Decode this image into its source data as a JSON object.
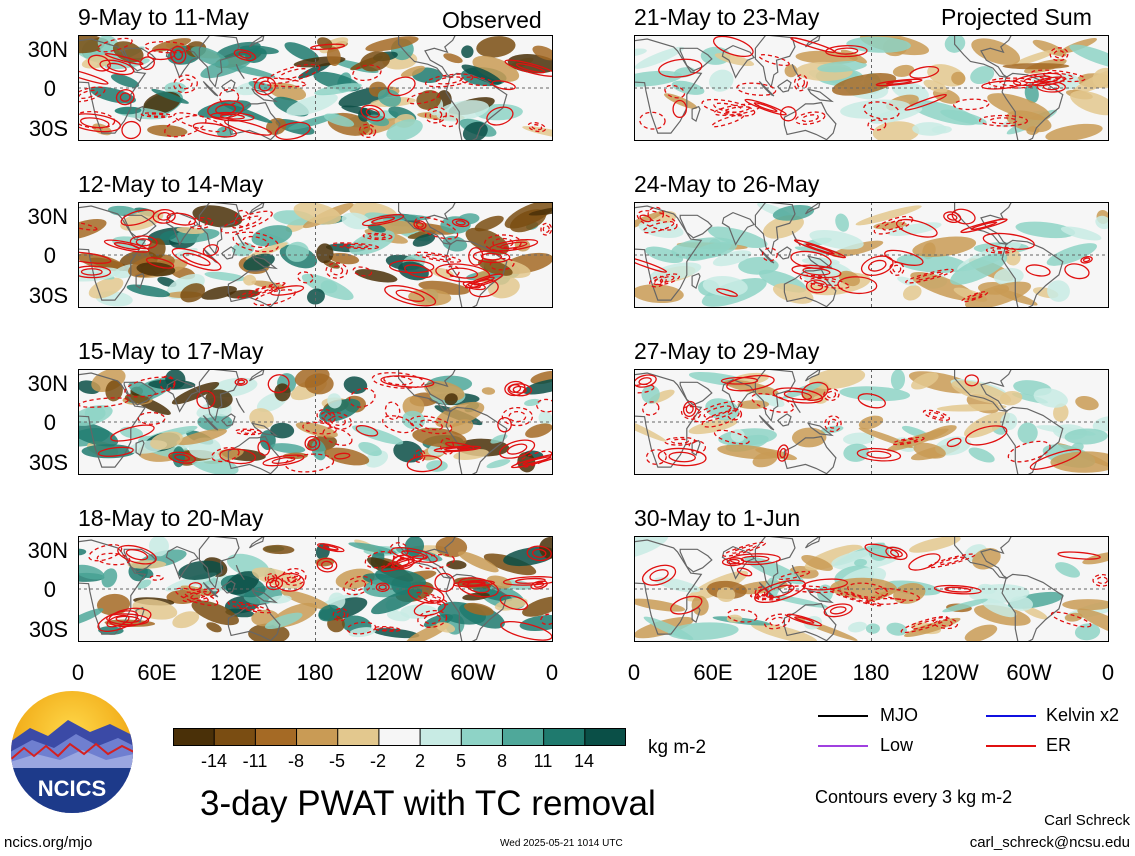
{
  "header": {
    "observed_label": "Observed",
    "projected_label": "Projected Sum"
  },
  "panels": [
    {
      "title": "9-May to 11-May",
      "seed": 11
    },
    {
      "title": "12-May to 14-May",
      "seed": 23
    },
    {
      "title": "15-May to 17-May",
      "seed": 37
    },
    {
      "title": "18-May to 20-May",
      "seed": 41
    },
    {
      "title": "21-May to 23-May",
      "seed": 53
    },
    {
      "title": "24-May to 26-May",
      "seed": 67
    },
    {
      "title": "27-May to 29-May",
      "seed": 71
    },
    {
      "title": "30-May to 1-Jun",
      "seed": 83
    }
  ],
  "y_ticks": [
    "30N",
    "0",
    "30S"
  ],
  "x_ticks": [
    "0",
    "60E",
    "120E",
    "180",
    "120W",
    "60W",
    "0"
  ],
  "colorbar": {
    "ticks": [
      "-14",
      "-11",
      "-8",
      "-5",
      "-2",
      "2",
      "5",
      "8",
      "11",
      "14"
    ],
    "colors": [
      "#4a3008",
      "#7a4d12",
      "#a56a25",
      "#c99b55",
      "#e3c88e",
      "#f6f6f6",
      "#c8ebe4",
      "#8ed3c6",
      "#4fa89a",
      "#1f7a6e",
      "#0a4f47"
    ],
    "units": "kg m-2"
  },
  "legend": {
    "items": [
      {
        "label": "MJO",
        "color": "#000000"
      },
      {
        "label": "Kelvin x2",
        "color": "#1010e0"
      },
      {
        "label": "Low",
        "color": "#a040e0"
      },
      {
        "label": "ER",
        "color": "#e01010"
      }
    ],
    "contours_note": "Contours every 3 kg m-2"
  },
  "logo": {
    "text": "NCICS"
  },
  "main_title": "3-day PWAT with TC removal",
  "footer": {
    "left": "ncics.org/mjo",
    "center": "Wed 2025-05-21 1014 UTC",
    "author": "Carl Schreck",
    "email": "carl_schreck@ncsu.edu"
  },
  "chart_data": {
    "type": "heatmap",
    "title": "3-day PWAT with TC removal",
    "units": "kg m-2",
    "x_axis": [
      "0",
      "60E",
      "120E",
      "180",
      "120W",
      "60W",
      "0"
    ],
    "y_axis": [
      "30N",
      "0",
      "30S"
    ],
    "colorbar_levels": [
      -14,
      -11,
      -8,
      -5,
      -2,
      2,
      5,
      8,
      11,
      14
    ],
    "contour_interval": 3,
    "panel_periods_observed": [
      "9-May to 11-May",
      "12-May to 14-May",
      "15-May to 17-May",
      "18-May to 20-May"
    ],
    "panel_periods_projected": [
      "21-May to 23-May",
      "24-May to 26-May",
      "27-May to 29-May",
      "30-May to 1-Jun"
    ],
    "contour_series": [
      "MJO",
      "Kelvin x2",
      "Low",
      "ER"
    ]
  }
}
